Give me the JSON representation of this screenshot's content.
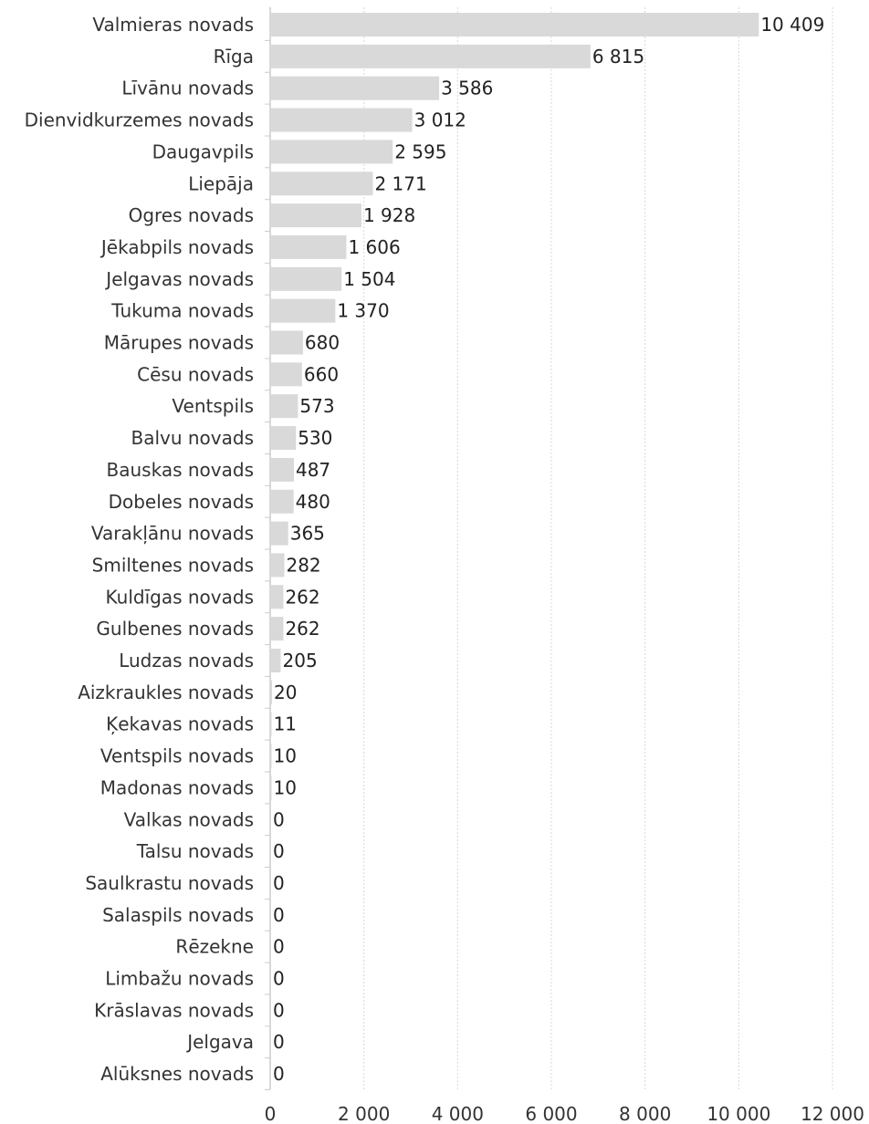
{
  "chart_data": {
    "type": "bar",
    "orientation": "horizontal",
    "categories": [
      "Valmieras novads",
      "Rīga",
      "Līvānu novads",
      "Dienvidkurzemes novads",
      "Daugavpils",
      "Liepāja",
      "Ogres novads",
      "Jēkabpils novads",
      "Jelgavas novads",
      "Tukuma novads",
      "Mārupes novads",
      "Cēsu novads",
      "Ventspils",
      "Balvu novads",
      "Bauskas novads",
      "Dobeles novads",
      "Varakļānu novads",
      "Smiltenes novads",
      "Kuldīgas novads",
      "Gulbenes novads",
      "Ludzas novads",
      "Aizkraukles novads",
      "Ķekavas novads",
      "Ventspils novads",
      "Madonas novads",
      "Valkas novads",
      "Talsu novads",
      "Saulkrastu novads",
      "Salaspils novads",
      "Rēzekne",
      "Limbažu novads",
      "Krāslavas novads",
      "Jelgava",
      "Alūksnes novads"
    ],
    "values": [
      10409,
      6815,
      3586,
      3012,
      2595,
      2171,
      1928,
      1606,
      1504,
      1370,
      680,
      660,
      573,
      530,
      487,
      480,
      365,
      282,
      262,
      262,
      205,
      20,
      11,
      10,
      10,
      0,
      0,
      0,
      0,
      0,
      0,
      0,
      0,
      0
    ],
    "value_labels": [
      "10 409",
      "6 815",
      "3 586",
      "3 012",
      "2 595",
      "2 171",
      "1 928",
      "1 606",
      "1 504",
      "1 370",
      "680",
      "660",
      "573",
      "530",
      "487",
      "480",
      "365",
      "282",
      "262",
      "262",
      "205",
      "20",
      "11",
      "10",
      "10",
      "0",
      "0",
      "0",
      "0",
      "0",
      "0",
      "0",
      "0",
      "0"
    ],
    "x_ticks": [
      0,
      2000,
      4000,
      6000,
      8000,
      10000,
      12000
    ],
    "x_tick_labels": [
      "0",
      "2 000",
      "4 000",
      "6 000",
      "8 000",
      "10 000",
      "12 000"
    ],
    "xlim": [
      0,
      12000
    ],
    "grid": true,
    "bar_color": "#d9d9d9",
    "title": "",
    "xlabel": "",
    "ylabel": ""
  }
}
